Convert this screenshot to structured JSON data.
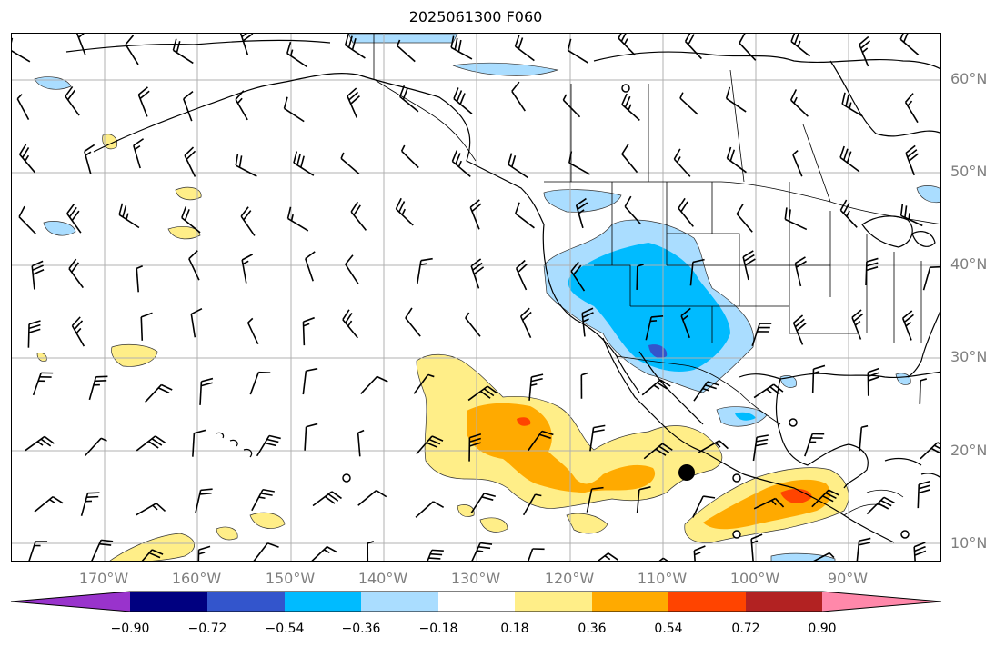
{
  "title": "2025061300 F060",
  "lat_labels": [
    "60°N",
    "50°N",
    "40°N",
    "30°N",
    "20°N",
    "10°N"
  ],
  "lon_labels": [
    "170°W",
    "160°W",
    "150°W",
    "140°W",
    "130°W",
    "120°W",
    "110°W",
    "100°W",
    "90°W"
  ],
  "colorbar": {
    "ticks": [
      "−0.90",
      "−0.72",
      "−0.54",
      "−0.36",
      "−0.18",
      "0.18",
      "0.36",
      "0.54",
      "0.72",
      "0.90"
    ],
    "colors": {
      "under": "#9933cc",
      "c1": "#000080",
      "c2": "#3355cc",
      "c3": "#00bbff",
      "c4": "#aaddff",
      "c5": "#ffffff",
      "c6": "#ffee88",
      "c7": "#ffaa00",
      "c8": "#ff4400",
      "c9": "#b22222",
      "over": "#ff88aa"
    }
  },
  "map_features": {
    "extent": "180°W–80°W, 8°N–65°N",
    "gridlines": true,
    "overlays": [
      "coastlines",
      "country borders",
      "US state borders",
      "wind barbs",
      "shaded anomaly field"
    ]
  }
}
